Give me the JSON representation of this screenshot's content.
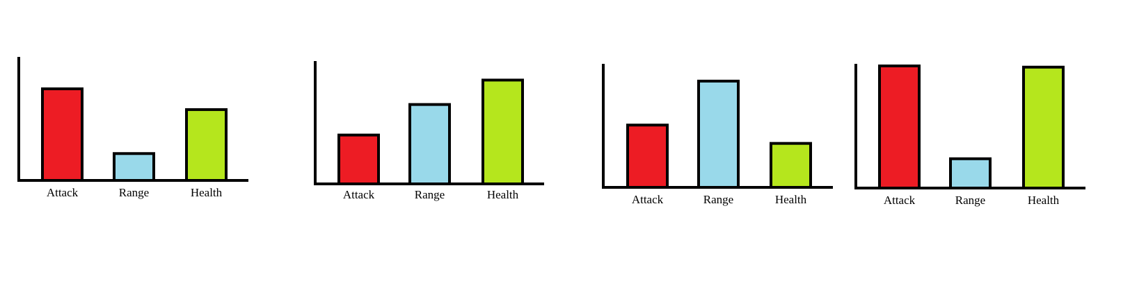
{
  "colors": {
    "attack": "#ed1c24",
    "range": "#99d9ea",
    "health": "#b5e61d",
    "outline": "#000000",
    "background": "#ffffff"
  },
  "chart_data": [
    {
      "type": "bar",
      "categories": [
        "Attack",
        "Range",
        "Health"
      ],
      "values": [
        75,
        22,
        58
      ],
      "ylim": [
        0,
        100
      ],
      "grid": false,
      "title": "",
      "xlabel": "",
      "ylabel": ""
    },
    {
      "type": "bar",
      "categories": [
        "Attack",
        "Range",
        "Health"
      ],
      "values": [
        40,
        65,
        85
      ],
      "ylim": [
        0,
        100
      ],
      "grid": false,
      "title": "",
      "xlabel": "",
      "ylabel": ""
    },
    {
      "type": "bar",
      "categories": [
        "Attack",
        "Range",
        "Health"
      ],
      "values": [
        51,
        87,
        36
      ],
      "ylim": [
        0,
        100
      ],
      "grid": false,
      "title": "",
      "xlabel": "",
      "ylabel": ""
    },
    {
      "type": "bar",
      "categories": [
        "Attack",
        "Range",
        "Health"
      ],
      "values": [
        100,
        24,
        99
      ],
      "ylim": [
        0,
        100
      ],
      "grid": false,
      "title": "",
      "xlabel": "",
      "ylabel": ""
    }
  ]
}
